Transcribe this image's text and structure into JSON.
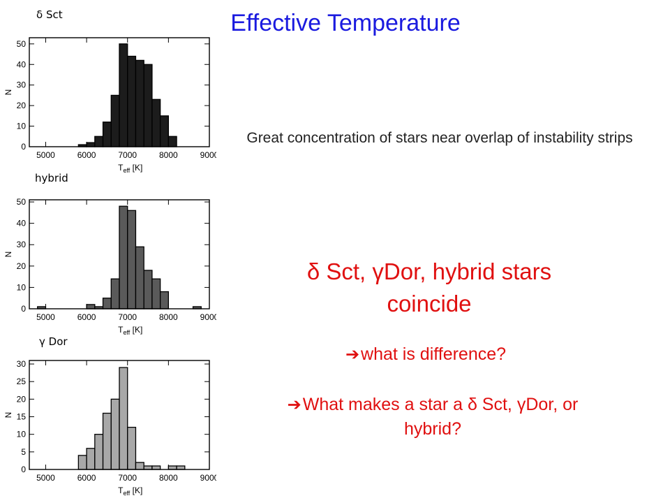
{
  "slide": {
    "title": "Effective Temperature",
    "note": "Great concentration of stars near overlap of instability strips",
    "highlight": "δ Sct, γDor, hybrid stars coincide",
    "bullet1": "what is difference?",
    "bullet2": "What makes a star a δ Sct, γDor, or hybrid?",
    "arrow_glyph": "➔"
  },
  "colors": {
    "title": "#1a1adf",
    "emphasis": "#e01010"
  },
  "chart_data": [
    {
      "type": "bar",
      "panel_label": "δ Sct",
      "bar_color": "#1c1c1c",
      "bin_edges": [
        4600,
        4800,
        5000,
        5200,
        5400,
        5600,
        5800,
        6000,
        6200,
        6400,
        6600,
        6800,
        7000,
        7200,
        7400,
        7600,
        7800,
        8000,
        8200,
        8400,
        8600,
        8800,
        9000
      ],
      "values": [
        0,
        0,
        0,
        0,
        0,
        0,
        1,
        2,
        5,
        12,
        25,
        50,
        44,
        42,
        40,
        23,
        15,
        5,
        0,
        0,
        0,
        0
      ],
      "xlim": [
        4600,
        9000
      ],
      "ylim": [
        0,
        53
      ],
      "xticks": [
        5000,
        6000,
        7000,
        8000,
        9000
      ],
      "yticks": [
        0,
        10,
        20,
        30,
        40,
        50
      ],
      "xlabel_main": "T",
      "xlabel_sub": "eff",
      "xlabel_unit": " [K]",
      "ylabel": "N"
    },
    {
      "type": "bar",
      "panel_label": "hybrid",
      "bar_color": "#5a5a5a",
      "bin_edges": [
        4600,
        4800,
        5000,
        5200,
        5400,
        5600,
        5800,
        6000,
        6200,
        6400,
        6600,
        6800,
        7000,
        7200,
        7400,
        7600,
        7800,
        8000,
        8200,
        8400,
        8600,
        8800,
        9000
      ],
      "values": [
        0,
        1,
        0,
        0,
        0,
        0,
        0,
        2,
        1,
        5,
        14,
        48,
        46,
        29,
        18,
        14,
        8,
        0,
        0,
        0,
        1,
        0
      ],
      "xlim": [
        4600,
        9000
      ],
      "ylim": [
        0,
        51
      ],
      "xticks": [
        5000,
        6000,
        7000,
        8000,
        9000
      ],
      "yticks": [
        0,
        10,
        20,
        30,
        40,
        50
      ],
      "xlabel_main": "T",
      "xlabel_sub": "eff",
      "xlabel_unit": " [K]",
      "ylabel": "N"
    },
    {
      "type": "bar",
      "panel_label": "γ Dor",
      "bar_color": "#a8a8a8",
      "bin_edges": [
        4600,
        4800,
        5000,
        5200,
        5400,
        5600,
        5800,
        6000,
        6200,
        6400,
        6600,
        6800,
        7000,
        7200,
        7400,
        7600,
        7800,
        8000,
        8200,
        8400,
        8600,
        8800,
        9000
      ],
      "values": [
        0,
        0,
        0,
        0,
        0,
        0,
        4,
        6,
        10,
        16,
        20,
        29,
        12,
        2,
        1,
        1,
        0,
        1,
        1,
        0,
        0,
        0
      ],
      "xlim": [
        4600,
        9000
      ],
      "ylim": [
        0,
        31
      ],
      "xticks": [
        5000,
        6000,
        7000,
        8000,
        9000
      ],
      "yticks": [
        0,
        5,
        10,
        15,
        20,
        25,
        30
      ],
      "xlabel_main": "T",
      "xlabel_sub": "eff",
      "xlabel_unit": " [K]",
      "ylabel": "N"
    }
  ]
}
